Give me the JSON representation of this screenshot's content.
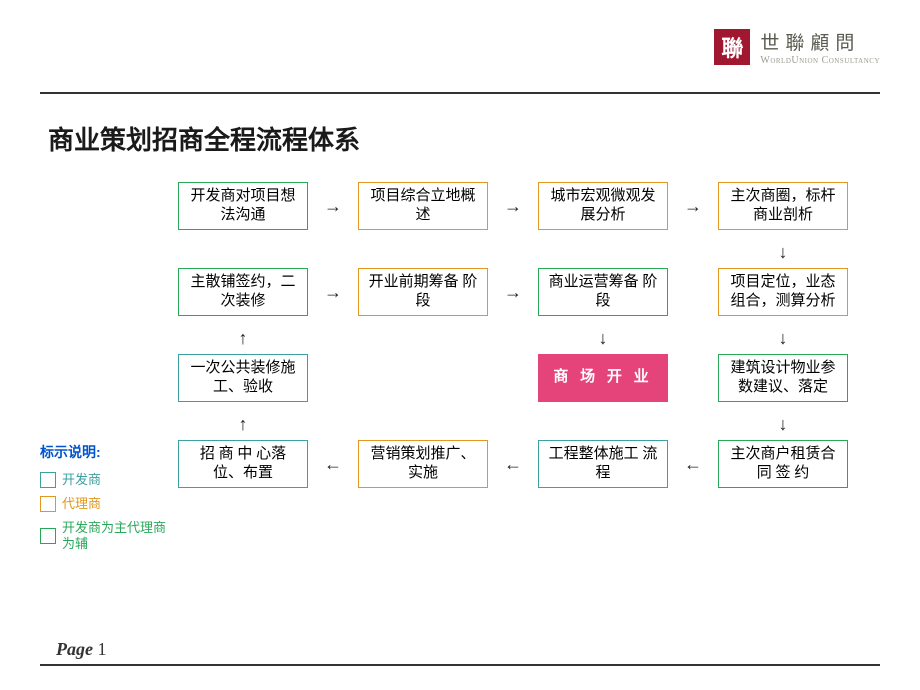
{
  "logo": {
    "icon_char": "聯",
    "cn": "世聯顧問",
    "en": "WorldUnion Consultancy",
    "icon_bg": "#a01830"
  },
  "title": {
    "text": "商业策划招商全程流程体系",
    "color": "#1a1a1a",
    "fontsize": 26
  },
  "colors": {
    "green": "#2aa85a",
    "orange": "#e09820",
    "teal": "#3aa0a0",
    "pink": "#e5447a",
    "arrow": "#222222",
    "rule": "#333333"
  },
  "legend": {
    "title": "标示说明:",
    "items": [
      {
        "color": "#3aa0a0",
        "label": "开发商"
      },
      {
        "color": "#e09820",
        "label": "代理商"
      },
      {
        "color": "#2aa85a",
        "label": "开发商为主代理商为辅"
      }
    ]
  },
  "flow": {
    "row1": [
      {
        "text": "开发商对项目想法沟通",
        "border": "#2aa85a"
      },
      {
        "text": "项目综合立地概述",
        "border": "#e09820"
      },
      {
        "text": "城市宏观微观发展分析",
        "border": "#e09820"
      },
      {
        "text": "主次商圈，标杆商业剖析",
        "border": "#e09820"
      }
    ],
    "row2": [
      {
        "text": "主散铺签约，二次装修",
        "border": "#2aa85a"
      },
      {
        "text": "开业前期筹备 阶 段",
        "border": "#e09820"
      },
      {
        "text": "商业运营筹备 阶 段",
        "border": "#2aa85a"
      },
      {
        "text": "项目定位，业态组合，测算分析",
        "border": "#e09820"
      }
    ],
    "row3": [
      {
        "text": "一次公共装修施工、验收",
        "border": "#3aa0a0"
      },
      {
        "text": "商 场 开 业",
        "pink": true
      },
      {
        "text": "建筑设计物业参数建议、落定",
        "border": "#2aa85a"
      }
    ],
    "row4": [
      {
        "text": "招 商 中 心落位、布置",
        "border": "#3aa0a0"
      },
      {
        "text": "营销策划推广、实施",
        "border": "#e09820"
      },
      {
        "text": "工程整体施工 流 程",
        "border": "#3aa0a0"
      },
      {
        "text": "主次商户租赁合 同 签 约",
        "border": "#2aa85a"
      }
    ],
    "arrows": {
      "right": "→",
      "left": "←",
      "down": "↓",
      "up": "↑"
    }
  },
  "page": {
    "label": "Page",
    "num": "1"
  }
}
